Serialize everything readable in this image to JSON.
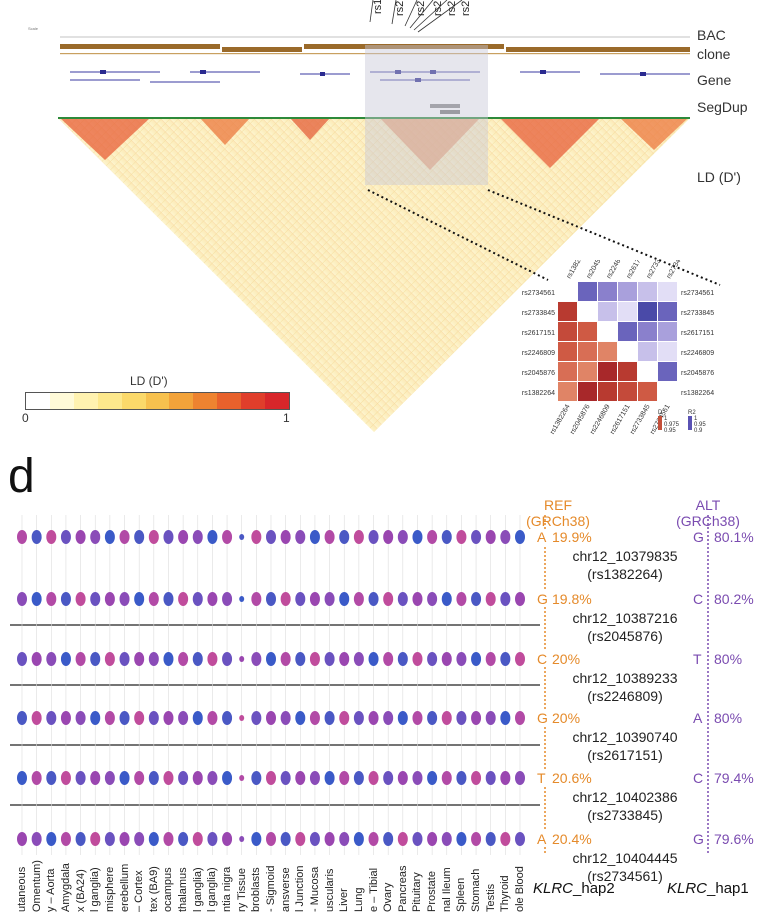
{
  "top_panel": {
    "snp_labels_top": [
      "rs1",
      "rs2",
      "rs2",
      "rs2",
      "rs2",
      "rs2"
    ],
    "track_labels": {
      "bac": "BAC",
      "clone": "clone",
      "gene": "Gene",
      "segdup": "SegDup",
      "ld": "LD (D')"
    },
    "colorbar": {
      "title": "LD (D')",
      "min_label": "0",
      "max_label": "1",
      "colors": [
        "#ffffff",
        "#fffad8",
        "#fff2b0",
        "#fde88c",
        "#fbd96a",
        "#f7c14e",
        "#f3a33a",
        "#ee8330",
        "#e8612c",
        "#e03e2b",
        "#d8262a"
      ]
    },
    "inset": {
      "snps": [
        "rs1382264",
        "rs2045876",
        "rs2246809",
        "rs2617151",
        "rs2733845",
        "rs2734561"
      ],
      "legend": {
        "dprime_label": "D'",
        "dprime_values": [
          "1",
          "0.975",
          "0.95"
        ],
        "r2_label": "R2",
        "r2_values": [
          "1",
          "0.95",
          "0.9"
        ]
      }
    }
  },
  "panel_d": {
    "letter": "d",
    "ref_header": [
      "REF",
      "(GRCh38)"
    ],
    "alt_header": [
      "ALT",
      "(GRCh38)"
    ],
    "rows": [
      {
        "ref_allele": "A",
        "ref_freq": "19.9%",
        "alt_allele": "G",
        "alt_freq": "80.1%",
        "pos": "chr12_10379835",
        "rsid": "(rs1382264)"
      },
      {
        "ref_allele": "G",
        "ref_freq": "19.8%",
        "alt_allele": "C",
        "alt_freq": "80.2%",
        "pos": "chr12_10387216",
        "rsid": "(rs2045876)"
      },
      {
        "ref_allele": "C",
        "ref_freq": "20%",
        "alt_allele": "T",
        "alt_freq": "80%",
        "pos": "chr12_10389233",
        "rsid": "(rs2246809)"
      },
      {
        "ref_allele": "G",
        "ref_freq": "20%",
        "alt_allele": "A",
        "alt_freq": "80%",
        "pos": "chr12_10390740",
        "rsid": "(rs2617151)"
      },
      {
        "ref_allele": "T",
        "ref_freq": "20.6%",
        "alt_allele": "C",
        "alt_freq": "79.4%",
        "pos": "chr12_10402386",
        "rsid": "(rs2733845)"
      },
      {
        "ref_allele": "A",
        "ref_freq": "20.4%",
        "alt_allele": "G",
        "alt_freq": "79.6%",
        "pos": "chr12_10404445",
        "rsid": "(rs2734561)"
      }
    ],
    "tissues": [
      "utaneous",
      "Omentum)",
      "y – Aorta",
      "Amygdala",
      "x (BA24)",
      "l ganglia)",
      "misphere",
      "erebellum",
      "– Cortex",
      "tex (BA9)",
      "ocampus",
      "thalamus",
      "l ganglia)",
      "l ganglia)",
      "ntia nigra",
      "ry Tissue",
      "broblasts",
      "- Sigmoid",
      "ansverse",
      "l Junction",
      "- Mucosa",
      "uscularis",
      "Liver",
      "Lung",
      "e – Tibial",
      "Ovary",
      "Pancreas",
      "Pituitary",
      "Prostate",
      "nal Ileum",
      "Spleen",
      "Stomach",
      "Testis",
      "Thyroid",
      "ole Blood"
    ],
    "hap_labels": {
      "hap2_gene": "KLRC",
      "hap2_suffix": "_hap2",
      "hap1_gene": "KLRC",
      "hap1_suffix": "_hap1"
    }
  }
}
